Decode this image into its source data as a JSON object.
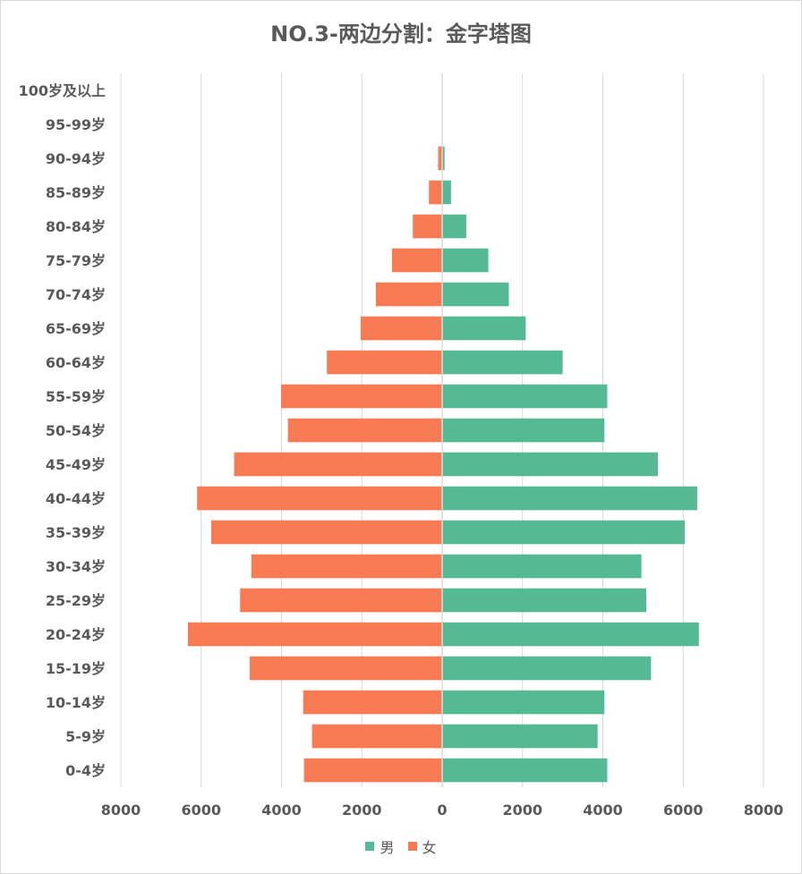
{
  "chart_data": {
    "type": "bar",
    "orientation": "horizontal",
    "title": "NO.3-两边分割：金字塔图",
    "categories": [
      "100岁及以上",
      "95-99岁",
      "90-94岁",
      "85-89岁",
      "80-84岁",
      "75-79岁",
      "70-74岁",
      "65-69岁",
      "60-64岁",
      "55-59岁",
      "50-54岁",
      "45-49岁",
      "40-44岁",
      "35-39岁",
      "30-34岁",
      "25-29岁",
      "20-24岁",
      "15-19岁",
      "10-14岁",
      "5-9岁",
      "0-4岁"
    ],
    "series": [
      {
        "name": "男",
        "color": "#55b994",
        "side": "right",
        "values": [
          0,
          0,
          60,
          220,
          600,
          1150,
          1660,
          2080,
          3000,
          4110,
          4040,
          5370,
          6350,
          6040,
          4960,
          5080,
          6390,
          5200,
          4040,
          3870,
          4110
        ]
      },
      {
        "name": "女",
        "color": "#f97b54",
        "side": "left",
        "values": [
          0,
          0,
          100,
          330,
          730,
          1250,
          1650,
          2030,
          2870,
          4010,
          3840,
          5180,
          6100,
          5750,
          4750,
          5030,
          6330,
          4790,
          3460,
          3240,
          3440
        ]
      }
    ],
    "xlim": [
      -8000,
      8000
    ],
    "xticks": [
      -8000,
      -6000,
      -4000,
      -2000,
      0,
      2000,
      4000,
      6000,
      8000
    ],
    "xtick_labels": [
      "8000",
      "6000",
      "4000",
      "2000",
      "0",
      "2000",
      "4000",
      "6000",
      "8000"
    ],
    "grid": "vertical",
    "legend": "bottom-center"
  }
}
